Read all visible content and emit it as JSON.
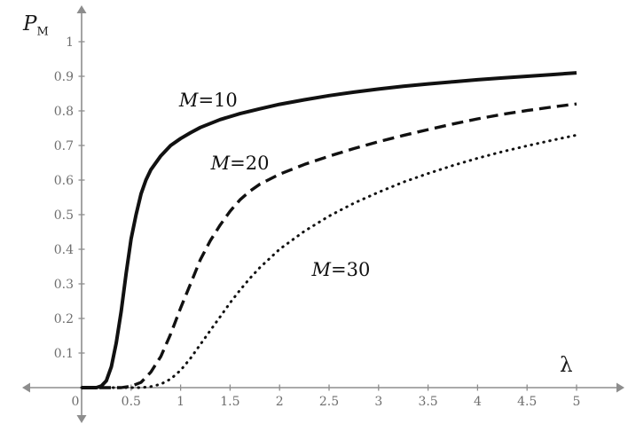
{
  "chart_data": {
    "type": "line",
    "title": "",
    "xlabel": "λ",
    "ylabel": "P_M",
    "ylabel_display": {
      "base": "P",
      "sub": "M"
    },
    "xlim": [
      0,
      5
    ],
    "ylim": [
      0,
      1
    ],
    "x_ticks": [
      0,
      0.5,
      1,
      1.5,
      2,
      2.5,
      3,
      3.5,
      4,
      4.5,
      5
    ],
    "y_ticks": [
      0.1,
      0.2,
      0.3,
      0.4,
      0.5,
      0.6,
      0.7,
      0.8,
      0.9,
      1
    ],
    "grid": false,
    "legend_position": "inline-labels",
    "axis_color": "#8d8d8d",
    "tick_label_color": "#6e6e6e",
    "curve_color": "#111111",
    "series": [
      {
        "name": "M=10",
        "label": {
          "var": "M",
          "rest": "=10"
        },
        "style": "solid",
        "label_pos": [
          1.28,
          0.83
        ],
        "points": [
          [
            0,
            0
          ],
          [
            0.15,
            0
          ],
          [
            0.2,
            0.005
          ],
          [
            0.25,
            0.02
          ],
          [
            0.3,
            0.06
          ],
          [
            0.35,
            0.13
          ],
          [
            0.4,
            0.22
          ],
          [
            0.45,
            0.33
          ],
          [
            0.5,
            0.43
          ],
          [
            0.55,
            0.5
          ],
          [
            0.6,
            0.56
          ],
          [
            0.65,
            0.6
          ],
          [
            0.7,
            0.63
          ],
          [
            0.8,
            0.67
          ],
          [
            0.9,
            0.7
          ],
          [
            1,
            0.72
          ],
          [
            1.1,
            0.737
          ],
          [
            1.2,
            0.752
          ],
          [
            1.4,
            0.775
          ],
          [
            1.6,
            0.792
          ],
          [
            1.8,
            0.806
          ],
          [
            2,
            0.819
          ],
          [
            2.25,
            0.832
          ],
          [
            2.5,
            0.844
          ],
          [
            2.75,
            0.854
          ],
          [
            3,
            0.863
          ],
          [
            3.25,
            0.871
          ],
          [
            3.5,
            0.878
          ],
          [
            3.75,
            0.884
          ],
          [
            4,
            0.89
          ],
          [
            4.25,
            0.895
          ],
          [
            4.5,
            0.9
          ],
          [
            4.75,
            0.905
          ],
          [
            5,
            0.91
          ]
        ]
      },
      {
        "name": "M=20",
        "label": {
          "var": "M",
          "rest": "=20"
        },
        "style": "dashed",
        "label_pos": [
          1.6,
          0.65
        ],
        "points": [
          [
            0,
            0
          ],
          [
            0.4,
            0
          ],
          [
            0.5,
            0.004
          ],
          [
            0.6,
            0.015
          ],
          [
            0.7,
            0.045
          ],
          [
            0.8,
            0.09
          ],
          [
            0.9,
            0.155
          ],
          [
            1,
            0.23
          ],
          [
            1.1,
            0.3
          ],
          [
            1.2,
            0.37
          ],
          [
            1.3,
            0.425
          ],
          [
            1.4,
            0.47
          ],
          [
            1.5,
            0.51
          ],
          [
            1.6,
            0.543
          ],
          [
            1.7,
            0.568
          ],
          [
            1.8,
            0.588
          ],
          [
            2,
            0.617
          ],
          [
            2.25,
            0.645
          ],
          [
            2.5,
            0.669
          ],
          [
            2.75,
            0.691
          ],
          [
            3,
            0.711
          ],
          [
            3.25,
            0.729
          ],
          [
            3.5,
            0.746
          ],
          [
            3.75,
            0.762
          ],
          [
            4,
            0.777
          ],
          [
            4.25,
            0.79
          ],
          [
            4.5,
            0.801
          ],
          [
            4.75,
            0.811
          ],
          [
            5,
            0.82
          ]
        ]
      },
      {
        "name": "M=30",
        "label": {
          "var": "M",
          "rest": "=30"
        },
        "style": "dotted",
        "label_pos": [
          2.62,
          0.34
        ],
        "points": [
          [
            0,
            0
          ],
          [
            0.6,
            0
          ],
          [
            0.7,
            0.003
          ],
          [
            0.8,
            0.01
          ],
          [
            0.9,
            0.025
          ],
          [
            1,
            0.05
          ],
          [
            1.1,
            0.085
          ],
          [
            1.2,
            0.125
          ],
          [
            1.3,
            0.165
          ],
          [
            1.4,
            0.205
          ],
          [
            1.5,
            0.245
          ],
          [
            1.6,
            0.282
          ],
          [
            1.7,
            0.316
          ],
          [
            1.8,
            0.347
          ],
          [
            2,
            0.4
          ],
          [
            2.25,
            0.452
          ],
          [
            2.5,
            0.496
          ],
          [
            2.75,
            0.533
          ],
          [
            3,
            0.565
          ],
          [
            3.25,
            0.594
          ],
          [
            3.5,
            0.619
          ],
          [
            3.75,
            0.642
          ],
          [
            4,
            0.663
          ],
          [
            4.25,
            0.682
          ],
          [
            4.5,
            0.699
          ],
          [
            4.75,
            0.715
          ],
          [
            5,
            0.73
          ]
        ]
      }
    ]
  }
}
